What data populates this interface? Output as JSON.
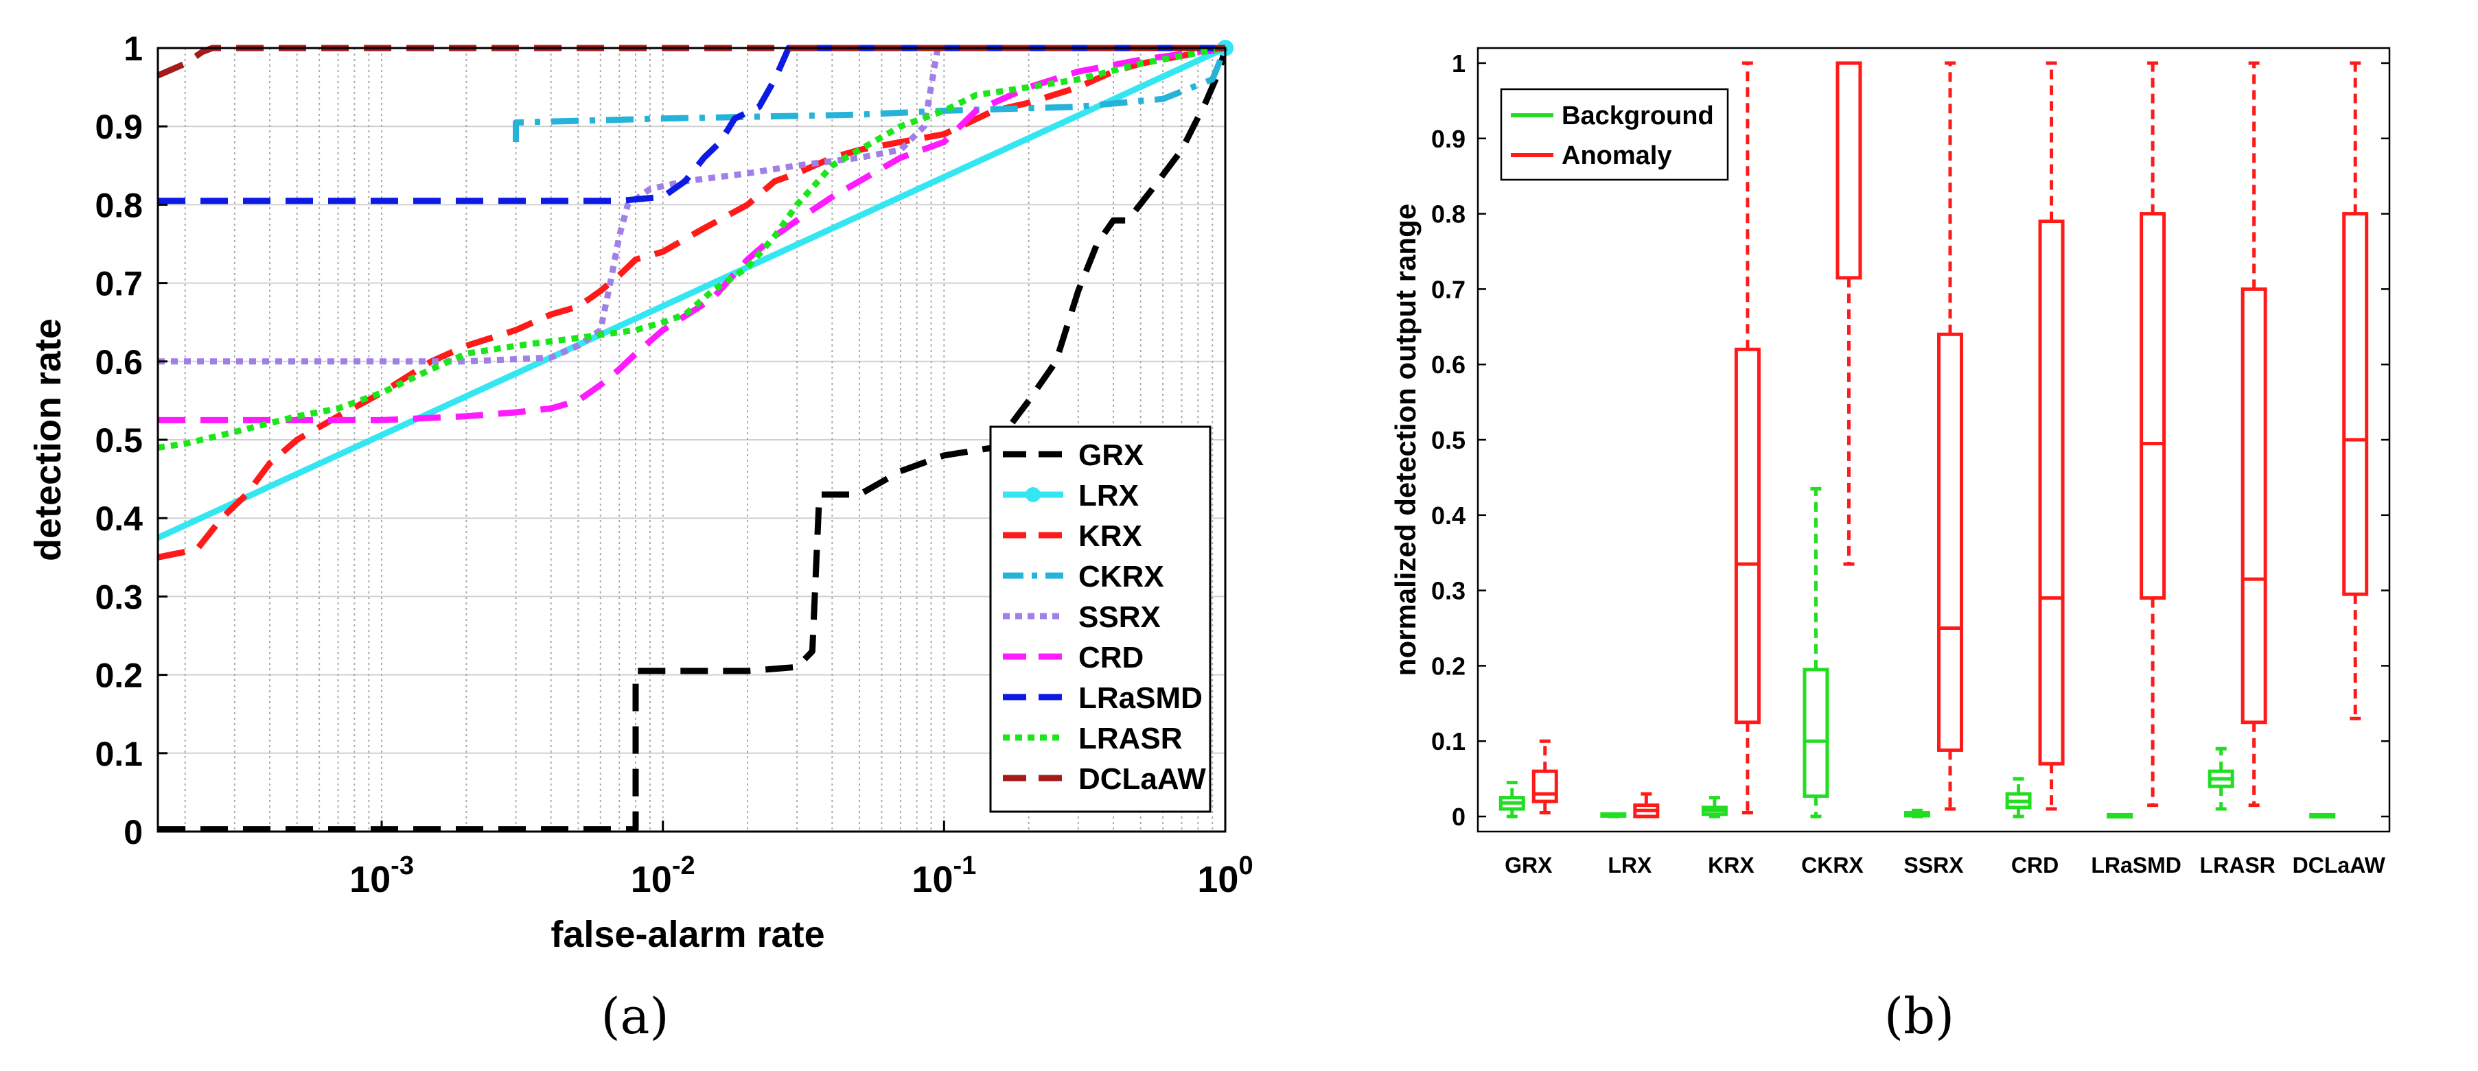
{
  "colors": {
    "GRX": "#000000",
    "LRX": "#33e6f2",
    "KRX": "#ff1a1a",
    "CKRX": "#26b3d9",
    "SSRX": "#a080e6",
    "CRD": "#ff1aff",
    "LRaSMD": "#0d1ae6",
    "LRASR": "#1ae61a",
    "DCLaAW": "#a61a1a",
    "background_box": "#22dd22",
    "anomaly_box": "#ff1a1a"
  },
  "captions": {
    "a": "(a)",
    "b": "(b)"
  },
  "chart_data": [
    {
      "id": "a",
      "type": "line",
      "xscale": "log",
      "xlabel": "false-alarm rate",
      "ylabel": "detection rate",
      "xlim": [
        0.00016,
        1
      ],
      "ylim": [
        0,
        1
      ],
      "grid": "on",
      "legend_position": "bottom-right",
      "xticks": [
        0.001,
        0.01,
        0.1,
        1
      ],
      "xtick_labels": [
        {
          "base": "10",
          "exp": "-3"
        },
        {
          "base": "10",
          "exp": "-2"
        },
        {
          "base": "10",
          "exp": "-1"
        },
        {
          "base": "10",
          "exp": "0"
        }
      ],
      "yticks": [
        0,
        0.1,
        0.2,
        0.3,
        0.4,
        0.5,
        0.6,
        0.7,
        0.8,
        0.9,
        1
      ],
      "ytick_labels": [
        "0",
        "0.1",
        "0.2",
        "0.3",
        "0.4",
        "0.5",
        "0.6",
        "0.7",
        "0.8",
        "0.9",
        "1"
      ],
      "series": [
        {
          "name": "GRX",
          "style": "dash",
          "points": [
            [
              0.00016,
              0.003
            ],
            [
              0.0075,
              0.003
            ],
            [
              0.008,
              0.003
            ],
            [
              0.008,
              0.205
            ],
            [
              0.02,
              0.205
            ],
            [
              0.03,
              0.21
            ],
            [
              0.034,
              0.23
            ],
            [
              0.036,
              0.43
            ],
            [
              0.05,
              0.43
            ],
            [
              0.07,
              0.46
            ],
            [
              0.1,
              0.48
            ],
            [
              0.15,
              0.49
            ],
            [
              0.2,
              0.55
            ],
            [
              0.25,
              0.6
            ],
            [
              0.3,
              0.69
            ],
            [
              0.35,
              0.75
            ],
            [
              0.4,
              0.78
            ],
            [
              0.45,
              0.78
            ],
            [
              0.55,
              0.82
            ],
            [
              0.7,
              0.87
            ],
            [
              0.85,
              0.93
            ],
            [
              0.95,
              0.97
            ],
            [
              1,
              1
            ]
          ]
        },
        {
          "name": "LRX",
          "style": "solid-marker",
          "points": [
            [
              0.00016,
              0.375
            ],
            [
              1,
              1
            ]
          ]
        },
        {
          "name": "KRX",
          "style": "dash",
          "points": [
            [
              0.00016,
              0.35
            ],
            [
              0.00022,
              0.36
            ],
            [
              0.00027,
              0.4
            ],
            [
              0.00033,
              0.43
            ],
            [
              0.0004,
              0.47
            ],
            [
              0.0005,
              0.5
            ],
            [
              0.0007,
              0.53
            ],
            [
              0.001,
              0.56
            ],
            [
              0.0015,
              0.6
            ],
            [
              0.002,
              0.62
            ],
            [
              0.003,
              0.64
            ],
            [
              0.004,
              0.66
            ],
            [
              0.005,
              0.67
            ],
            [
              0.006,
              0.69
            ],
            [
              0.007,
              0.71
            ],
            [
              0.008,
              0.73
            ],
            [
              0.01,
              0.74
            ],
            [
              0.014,
              0.77
            ],
            [
              0.02,
              0.8
            ],
            [
              0.025,
              0.83
            ],
            [
              0.03,
              0.84
            ],
            [
              0.04,
              0.86
            ],
            [
              0.05,
              0.87
            ],
            [
              0.07,
              0.88
            ],
            [
              0.1,
              0.89
            ],
            [
              0.15,
              0.92
            ],
            [
              0.2,
              0.93
            ],
            [
              0.3,
              0.95
            ],
            [
              0.4,
              0.97
            ],
            [
              0.5,
              0.98
            ],
            [
              0.7,
              0.99
            ],
            [
              1,
              1
            ]
          ]
        },
        {
          "name": "CKRX",
          "style": "dashdot",
          "points": [
            [
              0.003,
              0.88
            ],
            [
              0.003,
              0.905
            ],
            [
              0.01,
              0.91
            ],
            [
              0.05,
              0.915
            ],
            [
              0.1,
              0.92
            ],
            [
              0.3,
              0.925
            ],
            [
              0.6,
              0.935
            ],
            [
              0.9,
              0.96
            ],
            [
              1,
              1
            ]
          ]
        },
        {
          "name": "SSRX",
          "style": "dot",
          "points": [
            [
              0.00016,
              0.6
            ],
            [
              0.001,
              0.6
            ],
            [
              0.002,
              0.6
            ],
            [
              0.004,
              0.605
            ],
            [
              0.005,
              0.62
            ],
            [
              0.006,
              0.64
            ],
            [
              0.0065,
              0.7
            ],
            [
              0.007,
              0.76
            ],
            [
              0.0075,
              0.8
            ],
            [
              0.009,
              0.82
            ],
            [
              0.012,
              0.83
            ],
            [
              0.02,
              0.84
            ],
            [
              0.03,
              0.85
            ],
            [
              0.05,
              0.86
            ],
            [
              0.07,
              0.87
            ],
            [
              0.085,
              0.9
            ],
            [
              0.095,
              1
            ],
            [
              1,
              1
            ]
          ]
        },
        {
          "name": "CRD",
          "style": "dash",
          "points": [
            [
              0.00016,
              0.525
            ],
            [
              0.001,
              0.525
            ],
            [
              0.002,
              0.53
            ],
            [
              0.003,
              0.535
            ],
            [
              0.004,
              0.54
            ],
            [
              0.005,
              0.55
            ],
            [
              0.006,
              0.57
            ],
            [
              0.007,
              0.59
            ],
            [
              0.008,
              0.61
            ],
            [
              0.01,
              0.64
            ],
            [
              0.015,
              0.68
            ],
            [
              0.02,
              0.73
            ],
            [
              0.025,
              0.76
            ],
            [
              0.03,
              0.78
            ],
            [
              0.04,
              0.81
            ],
            [
              0.05,
              0.83
            ],
            [
              0.07,
              0.86
            ],
            [
              0.1,
              0.88
            ],
            [
              0.13,
              0.92
            ],
            [
              0.2,
              0.95
            ],
            [
              0.3,
              0.97
            ],
            [
              0.5,
              0.985
            ],
            [
              1,
              1
            ]
          ]
        },
        {
          "name": "LRaSMD",
          "style": "dash",
          "points": [
            [
              0.00016,
              0.805
            ],
            [
              0.007,
              0.805
            ],
            [
              0.01,
              0.81
            ],
            [
              0.012,
              0.83
            ],
            [
              0.014,
              0.86
            ],
            [
              0.016,
              0.88
            ],
            [
              0.018,
              0.91
            ],
            [
              0.022,
              0.925
            ],
            [
              0.025,
              0.96
            ],
            [
              0.028,
              1
            ],
            [
              1,
              1
            ]
          ]
        },
        {
          "name": "LRASR",
          "style": "dot",
          "points": [
            [
              0.00016,
              0.49
            ],
            [
              0.0002,
              0.495
            ],
            [
              0.0003,
              0.51
            ],
            [
              0.0005,
              0.53
            ],
            [
              0.0007,
              0.54
            ],
            [
              0.001,
              0.56
            ],
            [
              0.0015,
              0.59
            ],
            [
              0.002,
              0.61
            ],
            [
              0.003,
              0.62
            ],
            [
              0.005,
              0.63
            ],
            [
              0.008,
              0.64
            ],
            [
              0.01,
              0.65
            ],
            [
              0.012,
              0.66
            ],
            [
              0.015,
              0.69
            ],
            [
              0.02,
              0.72
            ],
            [
              0.025,
              0.76
            ],
            [
              0.03,
              0.8
            ],
            [
              0.04,
              0.85
            ],
            [
              0.05,
              0.87
            ],
            [
              0.07,
              0.9
            ],
            [
              0.1,
              0.92
            ],
            [
              0.13,
              0.94
            ],
            [
              0.2,
              0.95
            ],
            [
              0.3,
              0.96
            ],
            [
              0.5,
              0.98
            ],
            [
              0.7,
              0.99
            ],
            [
              1,
              1
            ]
          ]
        },
        {
          "name": "DCLaAW",
          "style": "dash",
          "points": [
            [
              0.00016,
              0.965
            ],
            [
              0.0002,
              0.98
            ],
            [
              0.00023,
              0.995
            ],
            [
              0.00025,
              1
            ],
            [
              1,
              1
            ]
          ]
        }
      ]
    },
    {
      "id": "b",
      "type": "box",
      "ylabel": "normalized detection output range",
      "ylim": [
        -0.02,
        1.02
      ],
      "yticks": [
        0,
        0.1,
        0.2,
        0.3,
        0.4,
        0.5,
        0.6,
        0.7,
        0.8,
        0.9,
        1
      ],
      "ytick_labels": [
        "0",
        "0.1",
        "0.2",
        "0.3",
        "0.4",
        "0.5",
        "0.6",
        "0.7",
        "0.8",
        "0.9",
        "1"
      ],
      "legend_position": "top-left",
      "legend": [
        "Background",
        "Anomaly"
      ],
      "categories": [
        "GRX",
        "LRX",
        "KRX",
        "CKRX",
        "SSRX",
        "CRD",
        "LRaSMD",
        "LRASR",
        "DCLaAW"
      ],
      "background": [
        {
          "min": 0.0,
          "q1": 0.01,
          "median": 0.018,
          "q3": 0.025,
          "max": 0.045
        },
        {
          "min": 0.0,
          "q1": 0.0,
          "median": 0.001,
          "q3": 0.002,
          "max": 0.003
        },
        {
          "min": 0.0,
          "q1": 0.003,
          "median": 0.008,
          "q3": 0.012,
          "max": 0.025
        },
        {
          "min": 0.0,
          "q1": 0.027,
          "median": 0.1,
          "q3": 0.195,
          "max": 0.435
        },
        {
          "min": 0.0,
          "q1": 0.001,
          "median": 0.003,
          "q3": 0.005,
          "max": 0.008
        },
        {
          "min": 0.0,
          "q1": 0.012,
          "median": 0.02,
          "q3": 0.03,
          "max": 0.05
        },
        {
          "min": 0.0,
          "q1": 0.0,
          "median": 0.001,
          "q3": 0.001,
          "max": 0.002
        },
        {
          "min": 0.01,
          "q1": 0.04,
          "median": 0.05,
          "q3": 0.06,
          "max": 0.09
        },
        {
          "min": 0.0,
          "q1": 0.0,
          "median": 0.001,
          "q3": 0.001,
          "max": 0.002
        }
      ],
      "anomaly": [
        {
          "min": 0.005,
          "q1": 0.02,
          "median": 0.03,
          "q3": 0.06,
          "max": 0.1
        },
        {
          "min": 0.0,
          "q1": 0.0,
          "median": 0.008,
          "q3": 0.015,
          "max": 0.03
        },
        {
          "min": 0.005,
          "q1": 0.125,
          "median": 0.335,
          "q3": 0.62,
          "max": 1.0
        },
        {
          "min": 0.335,
          "q1": 0.715,
          "median": 1.0,
          "q3": 1.0,
          "max": 1.0
        },
        {
          "min": 0.01,
          "q1": 0.088,
          "median": 0.25,
          "q3": 0.64,
          "max": 1.0
        },
        {
          "min": 0.01,
          "q1": 0.07,
          "median": 0.29,
          "q3": 0.79,
          "max": 1.0
        },
        {
          "min": 0.015,
          "q1": 0.29,
          "median": 0.495,
          "q3": 0.8,
          "max": 1.0
        },
        {
          "min": 0.015,
          "q1": 0.125,
          "median": 0.315,
          "q3": 0.7,
          "max": 1.0
        },
        {
          "min": 0.13,
          "q1": 0.295,
          "median": 0.5,
          "q3": 0.8,
          "max": 1.0
        }
      ]
    }
  ]
}
